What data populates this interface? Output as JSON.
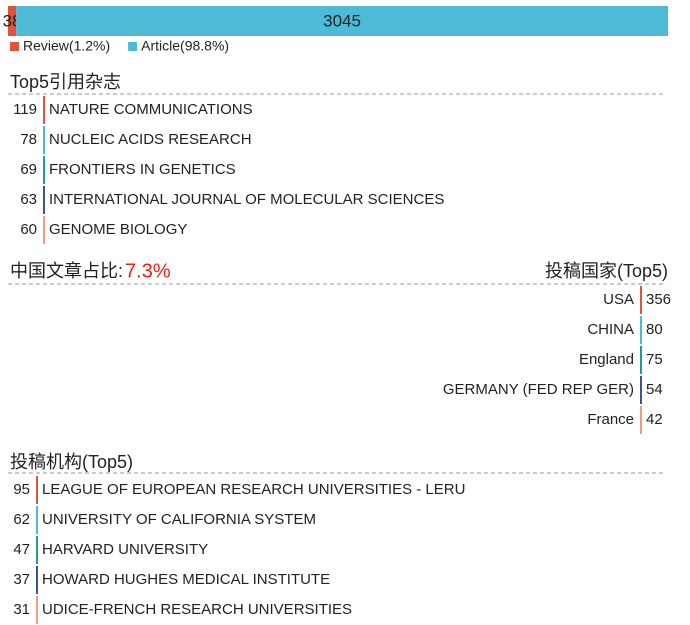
{
  "share_bar": {
    "segments": [
      {
        "value": 38,
        "color": "#e0533b",
        "legend": "Review(1.2%)"
      },
      {
        "value": 3045,
        "color": "#4dbbd5",
        "legend": "Article(98.8%)"
      }
    ]
  },
  "row_colors": [
    "#e0533b",
    "#4dbbd5",
    "#1f9e89",
    "#3c5488",
    "#f39b7f"
  ],
  "journals": {
    "title": "Top5引用杂志",
    "rows": [
      {
        "count": 119,
        "name": "NATURE COMMUNICATIONS"
      },
      {
        "count": 78,
        "name": "NUCLEIC ACIDS RESEARCH"
      },
      {
        "count": 69,
        "name": "FRONTIERS IN GENETICS"
      },
      {
        "count": 63,
        "name": "INTERNATIONAL JOURNAL OF MOLECULAR SCIENCES"
      },
      {
        "count": 60,
        "name": "GENOME BIOLOGY"
      }
    ]
  },
  "china_share": {
    "label": "中国文章占比:",
    "value": "7.3%"
  },
  "countries": {
    "title": "投稿国家(Top5)",
    "rows": [
      {
        "count": 356,
        "name": "USA"
      },
      {
        "count": 80,
        "name": "CHINA"
      },
      {
        "count": 75,
        "name": "England"
      },
      {
        "count": 54,
        "name": "GERMANY (FED REP GER)"
      },
      {
        "count": 42,
        "name": "France"
      }
    ]
  },
  "institutions": {
    "title": "投稿机构(Top5)",
    "rows": [
      {
        "count": 95,
        "name": "LEAGUE OF EUROPEAN RESEARCH UNIVERSITIES - LERU"
      },
      {
        "count": 62,
        "name": "UNIVERSITY OF CALIFORNIA SYSTEM"
      },
      {
        "count": 47,
        "name": "HARVARD UNIVERSITY"
      },
      {
        "count": 37,
        "name": "HOWARD HUGHES MEDICAL INSTITUTE"
      },
      {
        "count": 31,
        "name": "UDICE-FRENCH RESEARCH UNIVERSITIES"
      }
    ]
  }
}
